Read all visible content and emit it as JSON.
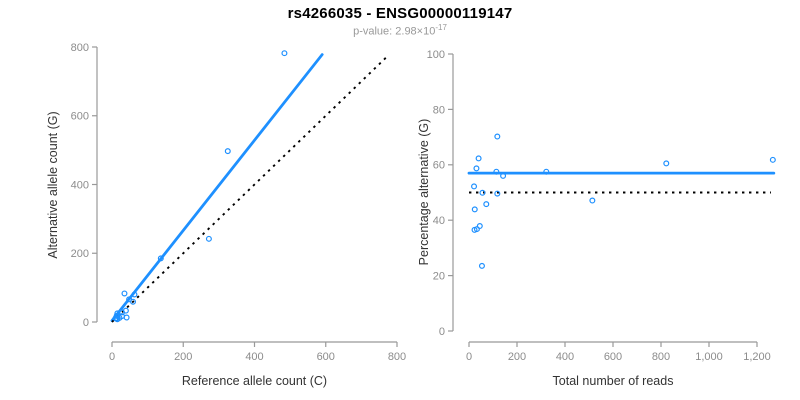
{
  "header": {
    "title": "rs4266035 - ENSG00000119147",
    "subtitle_main": "p-value: 2.98×10",
    "subtitle_exponent": "-17"
  },
  "colors": {
    "accent_blue": "#1E90FF",
    "dotted_black": "#000000",
    "axis_line": "#999999",
    "tick_label": "#8c8c8c",
    "axis_title": "#333333",
    "subtitle_gray": "#999999"
  },
  "chart_data": [
    {
      "id": "allele-count-scatter",
      "type": "scatter",
      "xlabel": "Reference allele count (C)",
      "ylabel": "Alternative allele count (G)",
      "xlim": [
        0,
        800
      ],
      "ylim": [
        0,
        800
      ],
      "xticks": [
        0,
        200,
        400,
        600,
        800
      ],
      "xtick_labels": [
        "0",
        "200",
        "400",
        "600",
        "800"
      ],
      "yticks": [
        0,
        200,
        400,
        600,
        800
      ],
      "ytick_labels": [
        "0",
        "200",
        "400",
        "600",
        "800"
      ],
      "points": [
        [
          35,
          83
        ],
        [
          15,
          25
        ],
        [
          13,
          18
        ],
        [
          48,
          66
        ],
        [
          63,
          80
        ],
        [
          10,
          11
        ],
        [
          28,
          28
        ],
        [
          59,
          59
        ],
        [
          39,
          33
        ],
        [
          13,
          11
        ],
        [
          15,
          8
        ],
        [
          21,
          12
        ],
        [
          28,
          17
        ],
        [
          41,
          13
        ],
        [
          137,
          185
        ],
        [
          325,
          497
        ],
        [
          272,
          242
        ],
        [
          484,
          782
        ]
      ],
      "lines": [
        {
          "name": "regression-line",
          "style": "solid",
          "color": "#1E90FF",
          "x1": 0,
          "y1": 4,
          "x2": 590,
          "y2": 778
        },
        {
          "name": "identity-line",
          "style": "dotted",
          "color": "#000000",
          "x1": 0,
          "y1": 0,
          "x2": 772,
          "y2": 772
        }
      ]
    },
    {
      "id": "percentage-reads-scatter",
      "type": "scatter",
      "xlabel": "Total number of reads",
      "ylabel": "Percentage alternative (G)",
      "xlim": [
        0,
        1200
      ],
      "ylim": [
        0,
        100
      ],
      "xticks": [
        0,
        200,
        400,
        600,
        800,
        1000,
        1200
      ],
      "xtick_labels": [
        "0",
        "200",
        "400",
        "600",
        "800",
        "1,000",
        "1,200"
      ],
      "yticks": [
        0,
        20,
        40,
        60,
        80,
        100
      ],
      "ytick_labels": [
        "0",
        "20",
        "40",
        "60",
        "80",
        "100"
      ],
      "points": [
        [
          118,
          70.2
        ],
        [
          40,
          62.3
        ],
        [
          31,
          58.7
        ],
        [
          114,
          57.5
        ],
        [
          142,
          56.0
        ],
        [
          21,
          52.2
        ],
        [
          56,
          49.9
        ],
        [
          118,
          49.6
        ],
        [
          72,
          45.8
        ],
        [
          24,
          43.9
        ],
        [
          23,
          36.5
        ],
        [
          33,
          36.8
        ],
        [
          45,
          37.9
        ],
        [
          54,
          23.5
        ],
        [
          322,
          57.5
        ],
        [
          822,
          60.5
        ],
        [
          514,
          47.1
        ],
        [
          1266,
          61.8
        ]
      ],
      "lines": [
        {
          "name": "mean-percentage-line",
          "style": "solid",
          "color": "#1E90FF",
          "x1": 0,
          "y1": 57,
          "x2": 1270,
          "y2": 57
        },
        {
          "name": "fifty-percent-line",
          "style": "dotted",
          "color": "#000000",
          "x1": 0,
          "y1": 50,
          "x2": 1258,
          "y2": 50
        }
      ]
    }
  ]
}
